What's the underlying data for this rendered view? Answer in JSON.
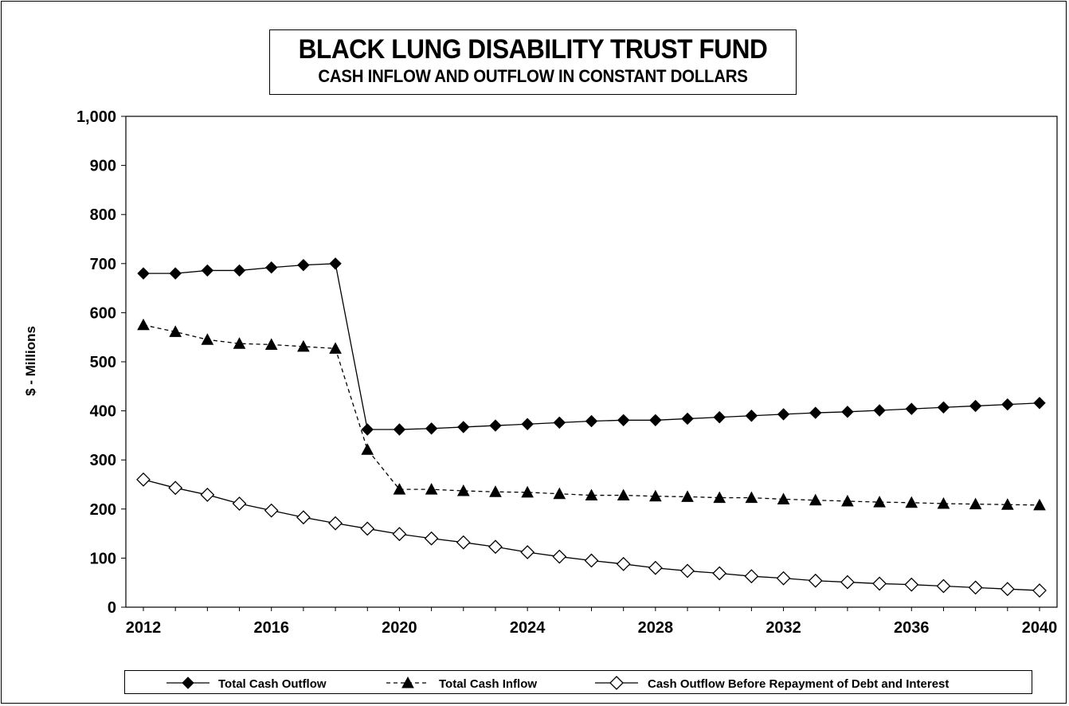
{
  "chart_data": {
    "type": "line",
    "title": "BLACK LUNG DISABILITY TRUST FUND",
    "subtitle": "CASH INFLOW AND OUTFLOW IN CONSTANT DOLLARS",
    "xlabel": "",
    "ylabel": "$ - Millions",
    "xlim": [
      2012,
      2040
    ],
    "ylim": [
      0,
      1000
    ],
    "x_ticks": [
      2012,
      2016,
      2020,
      2024,
      2028,
      2032,
      2036,
      2040
    ],
    "y_ticks": [
      0,
      100,
      200,
      300,
      400,
      500,
      600,
      700,
      800,
      900,
      1000
    ],
    "y_tick_labels": [
      "0",
      "100",
      "200",
      "300",
      "400",
      "500",
      "600",
      "700",
      "800",
      "900",
      "1,000"
    ],
    "grid": false,
    "legend_position": "bottom",
    "x": [
      2012,
      2013,
      2014,
      2015,
      2016,
      2017,
      2018,
      2019,
      2020,
      2021,
      2022,
      2023,
      2024,
      2025,
      2026,
      2027,
      2028,
      2029,
      2030,
      2031,
      2032,
      2033,
      2034,
      2035,
      2036,
      2037,
      2038,
      2039,
      2040
    ],
    "series": [
      {
        "name": "Total Cash Outflow",
        "marker": "filled-diamond",
        "line": "solid",
        "values": [
          680,
          680,
          686,
          686,
          692,
          697,
          700,
          362,
          362,
          364,
          367,
          370,
          373,
          376,
          379,
          381,
          381,
          384,
          387,
          390,
          393,
          396,
          398,
          401,
          404,
          407,
          410,
          413,
          416
        ]
      },
      {
        "name": "Total Cash Inflow",
        "marker": "filled-triangle",
        "line": "dashed",
        "values": [
          575,
          561,
          545,
          537,
          535,
          531,
          527,
          321,
          240,
          240,
          237,
          235,
          234,
          231,
          228,
          228,
          226,
          225,
          223,
          223,
          220,
          218,
          216,
          214,
          213,
          211,
          210,
          209,
          208
        ]
      },
      {
        "name": "Cash Outflow Before Repayment of Debt and Interest",
        "marker": "open-diamond",
        "line": "solid",
        "values": [
          260,
          243,
          229,
          211,
          197,
          183,
          171,
          160,
          149,
          140,
          132,
          123,
          112,
          103,
          95,
          88,
          80,
          74,
          69,
          63,
          59,
          54,
          51,
          48,
          46,
          43,
          40,
          37,
          34
        ]
      }
    ]
  }
}
